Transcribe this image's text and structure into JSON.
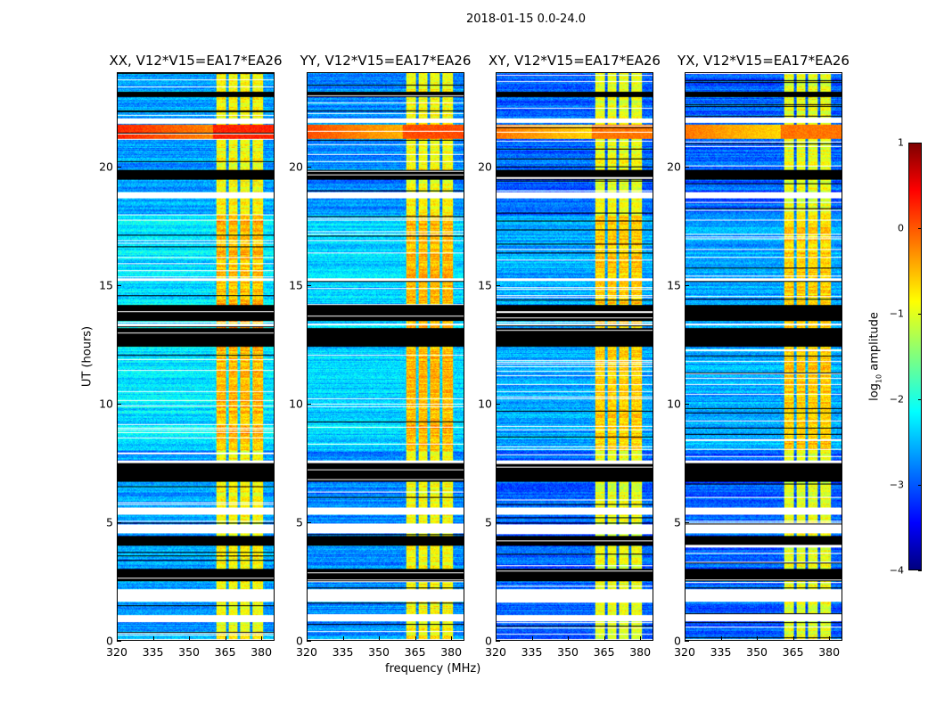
{
  "figure": {
    "suptitle": "2018-01-15 0.0-24.0",
    "xlabel": "frequency (MHz)",
    "ylabel": "UT (hours)"
  },
  "chart_data": {
    "type": "heatmap",
    "xlim": [
      320,
      385.5
    ],
    "ylim": [
      0,
      24
    ],
    "xticks": [
      320,
      335,
      350,
      365,
      380
    ],
    "yticks": [
      0,
      5,
      10,
      15,
      20
    ],
    "colorbar": {
      "label": "log10 amplitude",
      "label_main": "log",
      "label_sub": "10",
      "label_tail": " amplitude",
      "range": [
        -4,
        1
      ],
      "ticks": [
        -4,
        -3,
        -2,
        -1,
        0,
        1
      ],
      "tick_labels": [
        "−4",
        "−3",
        "−2",
        "−1",
        "0",
        "1"
      ],
      "colormap": "jet"
    },
    "panels": [
      {
        "title": "XX, V12*V15=EA17*EA26",
        "background": -2.6,
        "band": -1.0,
        "rfi_row_level": 0.2
      },
      {
        "title": "YY, V12*V15=EA17*EA26",
        "background": -2.7,
        "band": -1.0,
        "rfi_row_level": 0.0
      },
      {
        "title": "XY, V12*V15=EA17*EA26",
        "background": -2.9,
        "band": -1.1,
        "rfi_row_level": -0.2
      },
      {
        "title": "YX, V12*V15=EA17*EA26",
        "background": -2.9,
        "band": -1.1,
        "rfi_row_level": -0.2
      }
    ],
    "bright_band_mhz": [
      361.5,
      381
    ],
    "band_gaps_mhz": [
      366,
      371,
      376
    ],
    "rfi_rows_hours": [
      21.2,
      21.8
    ],
    "flagged_white_hours": [
      [
        0.0,
        0.05
      ],
      [
        0.8,
        1.05
      ],
      [
        1.6,
        2.15
      ],
      [
        4.5,
        4.9
      ],
      [
        5.3,
        5.6
      ],
      [
        7.5,
        7.6
      ],
      [
        18.7,
        18.95
      ],
      [
        21.9,
        22.1
      ],
      [
        13.3,
        13.4
      ],
      [
        15.2,
        15.3
      ]
    ],
    "zero_black_hours": [
      [
        2.5,
        3.0
      ],
      [
        4.0,
        4.4
      ],
      [
        6.7,
        7.5
      ],
      [
        12.4,
        13.2
      ],
      [
        13.5,
        14.2
      ],
      [
        19.5,
        19.9
      ],
      [
        23.0,
        23.2
      ]
    ]
  }
}
